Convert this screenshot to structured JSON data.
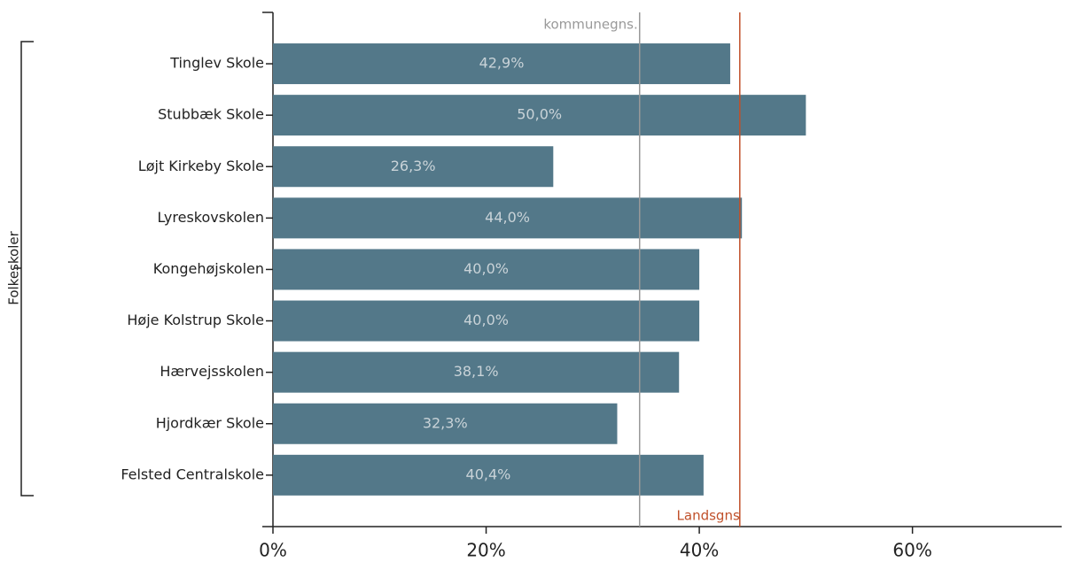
{
  "chart_data": {
    "type": "barh",
    "group_label": "Folkeskoler",
    "categories": [
      "Tinglev Skole",
      "Stubbæk Skole",
      "Løjt Kirkeby Skole",
      "Lyreskovskolen",
      "Kongehøjskolen",
      "Høje Kolstrup Skole",
      "Hærvejsskolen",
      "Hjordkær Skole",
      "Felsted Centralskole"
    ],
    "values": [
      42.9,
      50.0,
      26.3,
      44.0,
      40.0,
      40.0,
      38.1,
      32.3,
      40.4
    ],
    "value_labels": [
      "42,9%",
      "50,0%",
      "26,3%",
      "44,0%",
      "40,0%",
      "40,0%",
      "38,1%",
      "32,3%",
      "40,4%"
    ],
    "color": "#537889",
    "xlim": [
      0,
      74
    ],
    "xticks": [
      {
        "value": 0,
        "label": "0%"
      },
      {
        "value": 20,
        "label": "20%"
      },
      {
        "value": 40,
        "label": "40%"
      },
      {
        "value": 60,
        "label": "60%"
      }
    ],
    "reference_lines": [
      {
        "label": "kommunegns.",
        "value": 34.4,
        "color": "#999999"
      },
      {
        "label": "Landsgns",
        "value": 43.8,
        "color": "#c0502a"
      }
    ]
  }
}
